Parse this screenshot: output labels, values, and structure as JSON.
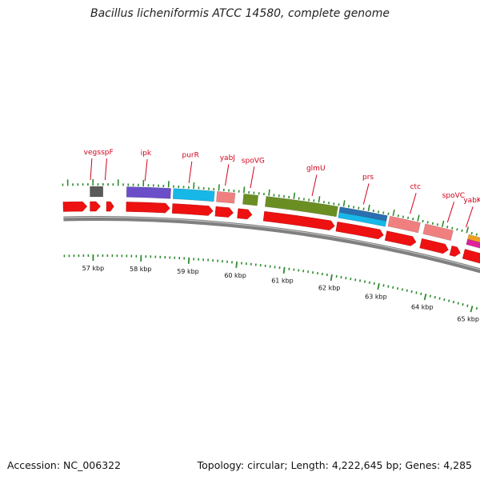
{
  "title": "Bacillus licheniformis ATCC 14580, complete genome",
  "footer": {
    "accession": "Accession: NC_006322",
    "summary": "Topology: circular; Length: 4,222,645 bp; Genes: 4,285"
  },
  "colors": {
    "gene_red": "#ee1111",
    "backbone": "#808080",
    "tick_green": "#2e8b2e",
    "label_red": "#d0021b"
  },
  "scale": {
    "unit": "kbp",
    "major_ticks": [
      57,
      58,
      59,
      60,
      61,
      62,
      63,
      64,
      65
    ],
    "tick_labels": [
      "57 kbp",
      "58 kbp",
      "59 kbp",
      "60 kbp",
      "61 kbp",
      "62 kbp",
      "63 kbp",
      "64 kbp",
      "65 kbp"
    ]
  },
  "genes": [
    {
      "name": "veg"
    },
    {
      "name": "sspF"
    },
    {
      "name": "ipk"
    },
    {
      "name": "purR"
    },
    {
      "name": "yabJ"
    },
    {
      "name": "spoVG"
    },
    {
      "name": "glmU"
    },
    {
      "name": "prs"
    },
    {
      "name": "ctc"
    },
    {
      "name": "spoVC"
    },
    {
      "name": "yabK"
    }
  ]
}
